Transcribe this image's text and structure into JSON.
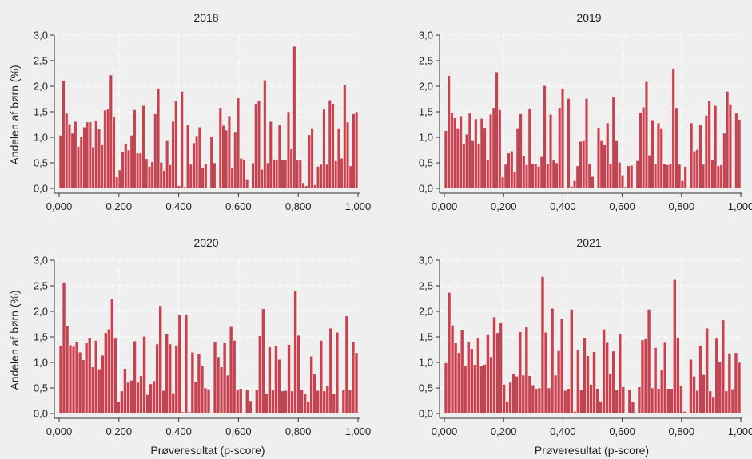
{
  "chart_data": [
    {
      "type": "bar",
      "title": "2018",
      "ylabel": "Andelen af børn (%)",
      "xlabel": "",
      "xlim": [
        0,
        1
      ],
      "ylim": [
        0,
        3
      ],
      "x_tick_labels": [
        "0,000",
        "0,200",
        "0,400",
        "0,600",
        "0,800",
        "1,000"
      ],
      "y_tick_labels": [
        "0,0",
        "0,5",
        "1,0",
        "1,5",
        "2,0",
        "2,5",
        "3,0"
      ],
      "grid": true,
      "bar_color": "#c8414f",
      "values": [
        1.04,
        2.11,
        1.47,
        1.26,
        1.08,
        1.31,
        0.82,
        1.01,
        1.2,
        1.3,
        1.3,
        0.81,
        1.33,
        1.16,
        0.85,
        1.53,
        1.55,
        2.22,
        1.4,
        0.22,
        0.36,
        0.72,
        0.88,
        0.75,
        1.04,
        1.54,
        0.69,
        0.69,
        1.62,
        0.58,
        0.43,
        0.52,
        1.46,
        1.96,
        0.51,
        0.35,
        0.93,
        0.46,
        1.31,
        1.71,
        0.05,
        1.9,
        0.03,
        1.24,
        0.47,
        0.89,
        1.03,
        1.2,
        0.41,
        0.48,
        0.01,
        1.02,
        0.5,
        0.0,
        1.58,
        1.23,
        1.14,
        1.42,
        0.4,
        1.11,
        1.77,
        0.59,
        0.57,
        0.18,
        0.02,
        0.5,
        1.66,
        1.72,
        0.37,
        2.12,
        0.5,
        1.31,
        0.57,
        0.56,
        1.24,
        0.56,
        0.55,
        1.5,
        0.77,
        2.78,
        0.55,
        0.55,
        0.11,
        0.05,
        1.05,
        1.18,
        0.07,
        0.43,
        0.47,
        1.55,
        0.47,
        1.73,
        1.66,
        0.54,
        1.18,
        0.59,
        2.03,
        1.3,
        0.44,
        1.46,
        1.5
      ]
    },
    {
      "type": "bar",
      "title": "2019",
      "ylabel": "",
      "xlabel": "",
      "xlim": [
        0,
        1
      ],
      "ylim": [
        0,
        3
      ],
      "x_tick_labels": [
        "0,000",
        "0,200",
        "0,400",
        "0,600",
        "0,800",
        "1,000"
      ],
      "y_tick_labels": [
        "0,0",
        "0,5",
        "1,0",
        "1,5",
        "2,0",
        "2,5",
        "3,0"
      ],
      "grid": true,
      "bar_color": "#c8414f",
      "values": [
        1.13,
        2.21,
        1.48,
        1.38,
        1.18,
        1.42,
        0.88,
        1.06,
        1.47,
        0.93,
        1.36,
        0.88,
        1.37,
        1.19,
        0.55,
        1.45,
        1.58,
        2.28,
        1.54,
        0.22,
        0.47,
        0.69,
        0.73,
        0.33,
        1.18,
        1.46,
        0.64,
        0.46,
        1.57,
        0.48,
        0.49,
        0.43,
        0.62,
        2.01,
        0.48,
        1.45,
        0.55,
        0.5,
        1.58,
        1.95,
        0.01,
        1.76,
        0.04,
        0.15,
        0.44,
        0.92,
        0.93,
        1.76,
        0.48,
        0.23,
        0.01,
        1.19,
        0.93,
        0.85,
        1.28,
        0.49,
        1.79,
        0.93,
        0.51,
        0.26,
        0.03,
        0.44,
        0.45,
        0.01,
        0.54,
        1.49,
        1.59,
        2.09,
        0.65,
        1.34,
        0.48,
        1.28,
        1.18,
        0.48,
        0.46,
        0.48,
        2.35,
        1.58,
        0.47,
        0.15,
        0.43,
        0.02,
        1.28,
        0.73,
        0.76,
        1.25,
        0.47,
        1.43,
        1.71,
        0.56,
        1.62,
        0.44,
        0.46,
        1.08,
        1.9,
        1.65,
        0.01,
        1.47,
        1.35
      ]
    },
    {
      "type": "bar",
      "title": "2020",
      "ylabel": "Andelen af børn (%)",
      "xlabel": "Prøveresultat (p-score)",
      "xlim": [
        0,
        1
      ],
      "ylim": [
        0,
        3
      ],
      "x_tick_labels": [
        "0,000",
        "0,200",
        "0,400",
        "0,600",
        "0,800",
        "1,000"
      ],
      "y_tick_labels": [
        "0,0",
        "0,5",
        "1,0",
        "1,5",
        "2,0",
        "2,5",
        "3,0"
      ],
      "grid": true,
      "bar_color": "#c8414f",
      "values": [
        1.33,
        2.57,
        1.72,
        1.34,
        1.31,
        1.4,
        1.2,
        1.05,
        1.38,
        1.48,
        0.91,
        1.43,
        0.87,
        1.14,
        1.58,
        1.65,
        2.25,
        1.47,
        0.23,
        0.44,
        0.88,
        0.61,
        0.65,
        1.42,
        0.61,
        0.74,
        1.51,
        0.37,
        0.58,
        0.64,
        1.36,
        2.11,
        0.45,
        1.56,
        1.36,
        0.4,
        1.33,
        1.94,
        0.03,
        1.93,
        0.03,
        1.2,
        0.62,
        1.17,
        0.94,
        0.5,
        0.48,
        0.02,
        1.4,
        1.11,
        0.91,
        1.38,
        0.75,
        1.7,
        1.43,
        0.47,
        0.49,
        0.01,
        0.47,
        0.25,
        0.02,
        0.47,
        1.52,
        2.05,
        0.38,
        1.3,
        0.46,
        1.33,
        1.06,
        0.44,
        0.45,
        1.35,
        0.44,
        2.4,
        1.53,
        0.46,
        0.39,
        0.24,
        1.12,
        0.77,
        0.45,
        1.43,
        0.44,
        0.54,
        1.67,
        0.38,
        1.59,
        0.02,
        0.46,
        1.91,
        0.46,
        1.41,
        1.19
      ]
    },
    {
      "type": "bar",
      "title": "2021",
      "ylabel": "",
      "xlabel": "Prøveresultat (p-score)",
      "xlim": [
        0,
        1
      ],
      "ylim": [
        0,
        3
      ],
      "x_tick_labels": [
        "0,000",
        "0,200",
        "0,400",
        "0,600",
        "0,800",
        "1,000"
      ],
      "y_tick_labels": [
        "0,0",
        "0,5",
        "1,0",
        "1,5",
        "2,0",
        "2,5",
        "3,0"
      ],
      "grid": true,
      "bar_color": "#c8414f",
      "values": [
        0.99,
        2.37,
        1.73,
        1.38,
        1.19,
        1.63,
        0.94,
        1.4,
        1.27,
        0.96,
        1.47,
        0.93,
        0.96,
        1.54,
        1.11,
        1.89,
        1.58,
        1.77,
        0.57,
        0.24,
        0.61,
        0.78,
        0.73,
        1.6,
        0.75,
        1.69,
        0.74,
        0.56,
        0.49,
        0.5,
        2.68,
        1.59,
        0.5,
        2.06,
        0.75,
        1.23,
        1.85,
        0.45,
        0.49,
        2.04,
        0.04,
        1.24,
        0.47,
        1.48,
        1.13,
        0.57,
        1.21,
        0.49,
        0.24,
        1.65,
        1.39,
        0.77,
        1.22,
        0.47,
        1.56,
        0.52,
        0.02,
        0.47,
        0.23,
        0.01,
        0.52,
        1.44,
        1.46,
        2.04,
        0.5,
        1.29,
        0.49,
        0.85,
        1.39,
        0.49,
        0.49,
        2.62,
        1.49,
        0.55,
        0.04,
        0.02,
        1.06,
        0.73,
        0.45,
        1.33,
        0.76,
        1.67,
        0.44,
        0.33,
        1.47,
        1.02,
        1.83,
        0.44,
        1.18,
        0.48,
        1.19,
        1.0
      ]
    }
  ]
}
